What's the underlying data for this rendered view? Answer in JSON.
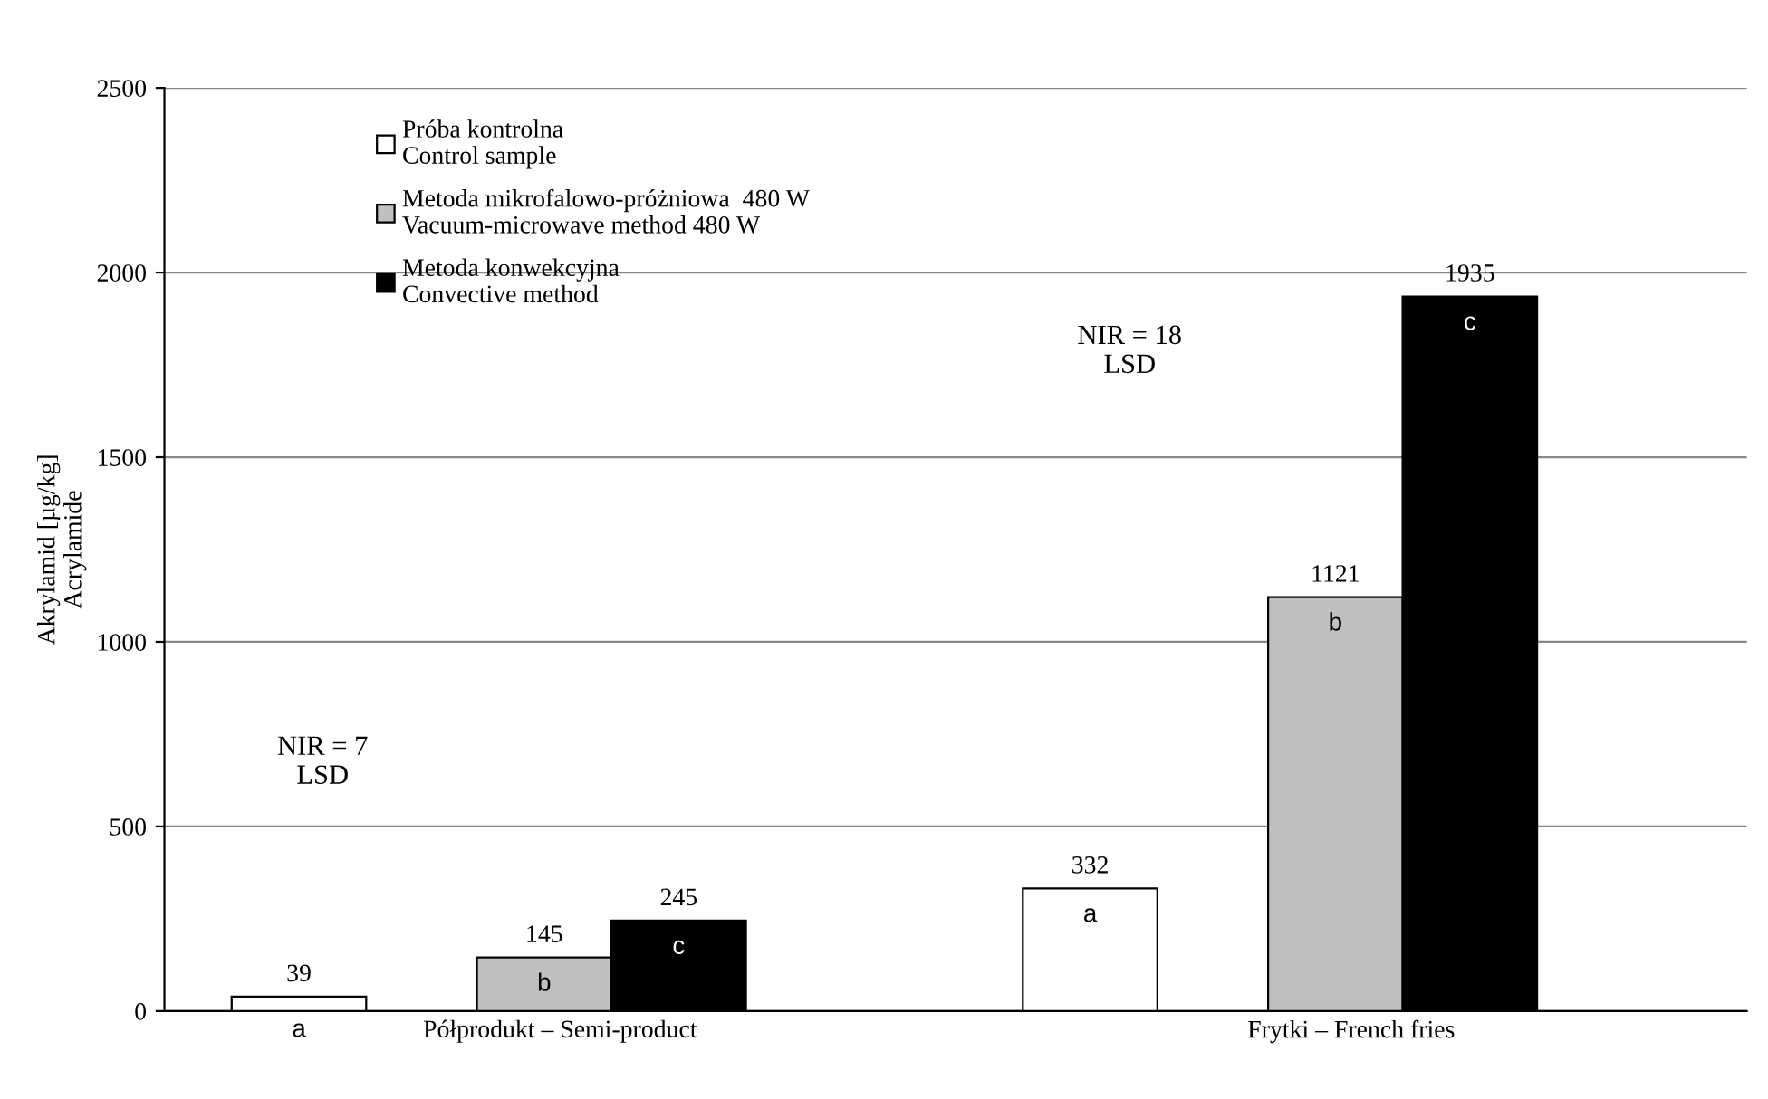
{
  "chart_data": {
    "type": "bar",
    "ylabel": "Akrylamid [µg/kg]\nAcrylamide",
    "categories": [
      "Półprodukt – Semi-product",
      "Frytki – French fries"
    ],
    "series": [
      {
        "name": "Próba kontrolna\nControl sample",
        "color": "#ffffff",
        "values": [
          39,
          332
        ]
      },
      {
        "name": "Metoda mikrofalowo-próżniowa  480 W\nVacuum-microwave method 480 W",
        "color": "#c0c0c0",
        "values": [
          145,
          1121
        ]
      },
      {
        "name": "Metoda konwekcyjna\nConvective method",
        "color": "#000000",
        "values": [
          245,
          1935
        ]
      }
    ],
    "ylim": [
      0,
      2500
    ],
    "yticks": [
      0,
      500,
      1000,
      1500,
      2000,
      2500
    ],
    "grid": "y",
    "legend": "top left",
    "data_labels": true,
    "annotations": [
      "a",
      "b",
      "c",
      "a",
      "b",
      "c",
      "NIR = 7\nLSD",
      "NIR = 18\nLSD"
    ]
  }
}
